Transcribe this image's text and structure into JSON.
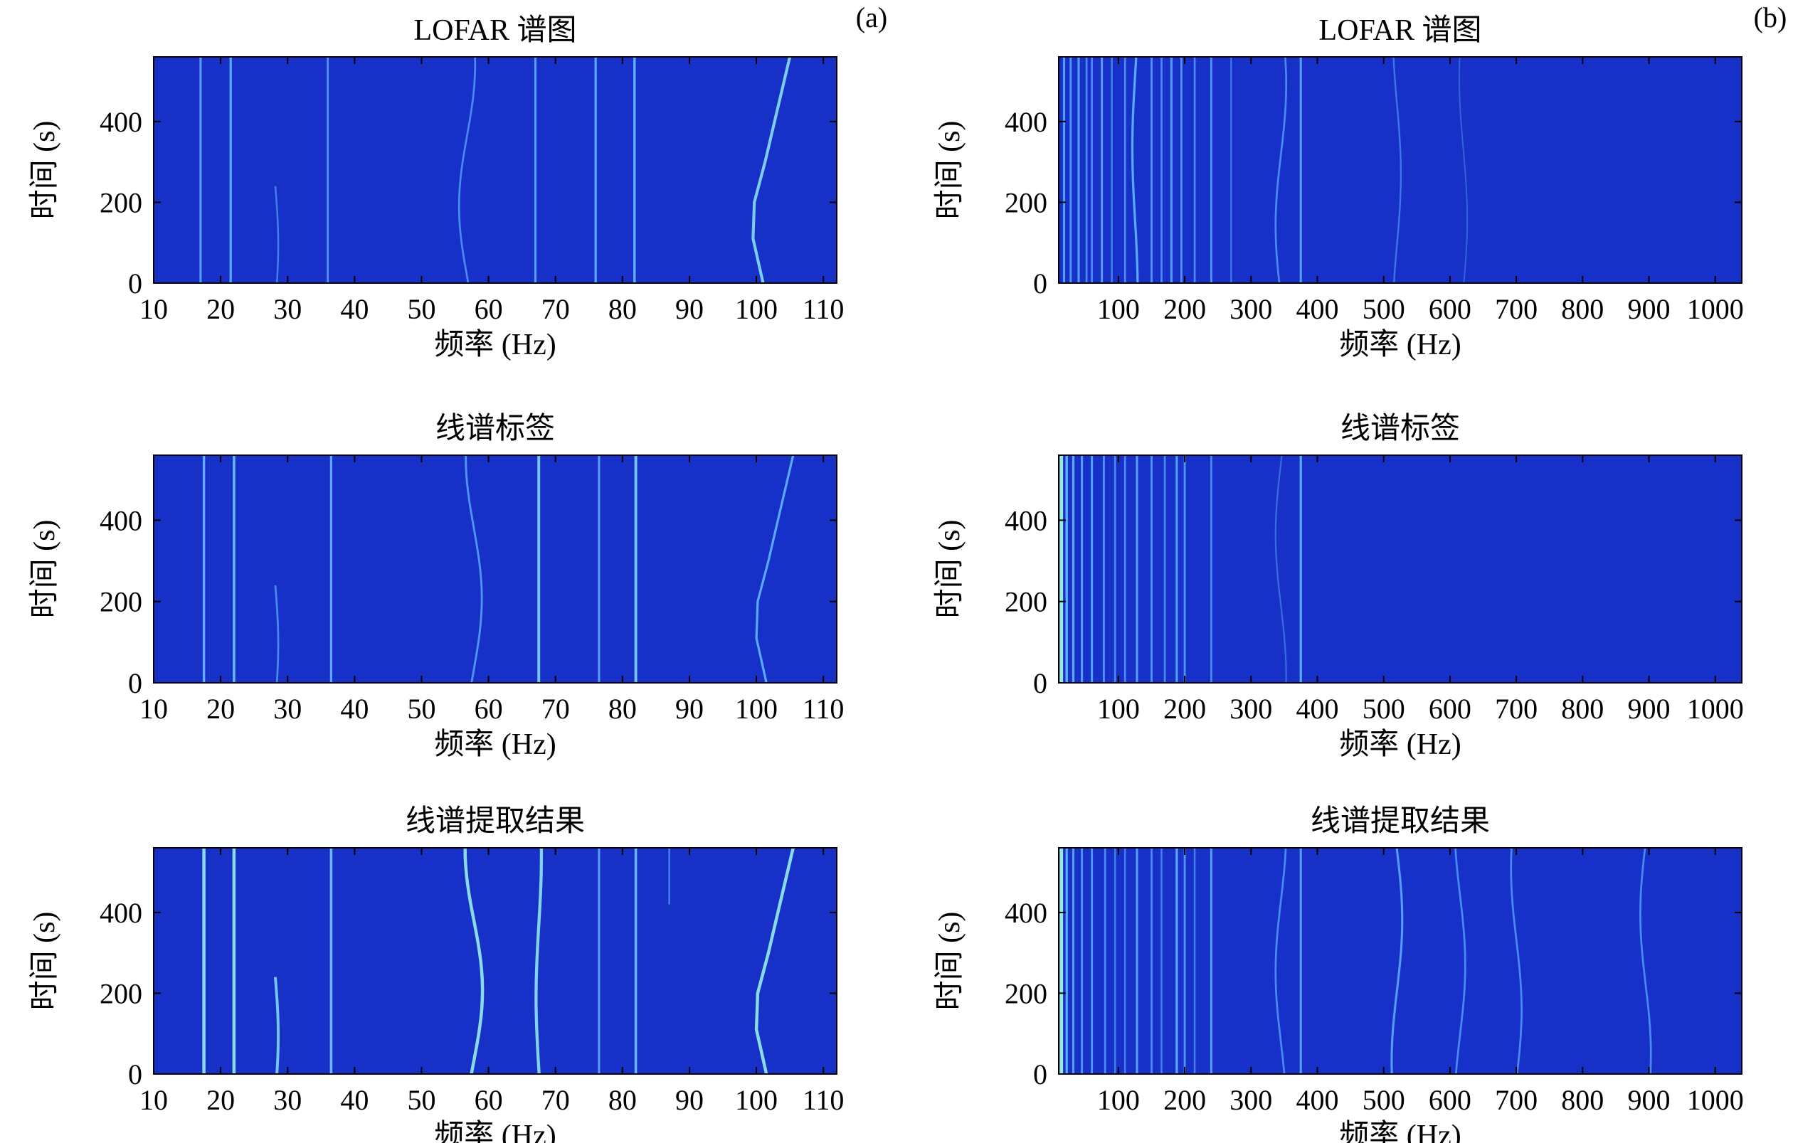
{
  "figure": {
    "panel_tags": [
      "(a)",
      "(b)"
    ],
    "background": "#1730c8",
    "line_colors": {
      "low": "#3a62f0",
      "mid": "#5aa8ff",
      "high": "#9ff0d8"
    }
  },
  "chart_data": [
    {
      "type": "heatmap",
      "panel": "a",
      "row": 0,
      "title": "LOFAR 谱图",
      "xlabel": "频率 (Hz)",
      "ylabel": "时间 (s)",
      "xlim": [
        10,
        112
      ],
      "ylim": [
        0,
        560
      ],
      "xticks": [
        10,
        20,
        30,
        40,
        50,
        60,
        70,
        80,
        90,
        100,
        110
      ],
      "yticks": [
        0,
        200,
        400
      ],
      "lines": [
        {
          "f": 17,
          "t": [
            0,
            560
          ],
          "level": 0.45
        },
        {
          "f": 21.5,
          "t": [
            0,
            560
          ],
          "level": 0.5
        },
        {
          "f": 36,
          "t": [
            0,
            560
          ],
          "level": 0.4
        },
        {
          "f": 56.8,
          "t": [
            0,
            560
          ],
          "level": 0.35,
          "wiggle": 1.2
        },
        {
          "f": 67,
          "t": [
            0,
            560
          ],
          "level": 0.45
        },
        {
          "f": 76,
          "t": [
            0,
            560
          ],
          "level": 0.5
        },
        {
          "f": 81.8,
          "t": [
            0,
            560
          ],
          "level": 0.55
        },
        {
          "f": 28,
          "t": [
            0,
            240
          ],
          "level": 0.3,
          "wiggle": 0.6
        },
        {
          "path": [
            [
              101,
              0
            ],
            [
              99.5,
              110
            ],
            [
              99.7,
              200
            ],
            [
              101.3,
              300
            ],
            [
              103,
              420
            ],
            [
              105,
              560
            ]
          ],
          "level": 0.75
        }
      ]
    },
    {
      "type": "heatmap",
      "panel": "a",
      "row": 1,
      "title": "线谱标签",
      "xlabel": "频率 (Hz)",
      "ylabel": "时间 (s)",
      "xlim": [
        10,
        112
      ],
      "ylim": [
        0,
        560
      ],
      "xticks": [
        10,
        20,
        30,
        40,
        50,
        60,
        70,
        80,
        90,
        100,
        110
      ],
      "yticks": [
        0,
        200,
        400
      ],
      "lines": [
        {
          "f": 17.5,
          "t": [
            0,
            560
          ],
          "level": 0.55
        },
        {
          "f": 22,
          "t": [
            0,
            560
          ],
          "level": 0.6
        },
        {
          "f": 36.5,
          "t": [
            0,
            560
          ],
          "level": 0.5
        },
        {
          "f": 67.5,
          "t": [
            0,
            560
          ],
          "level": 0.7
        },
        {
          "f": 76.5,
          "t": [
            0,
            560
          ],
          "level": 0.45
        },
        {
          "f": 82,
          "t": [
            0,
            560
          ],
          "level": 0.7
        },
        {
          "f": 57.8,
          "t": [
            0,
            560
          ],
          "level": 0.4,
          "wiggle": 1.2
        },
        {
          "f": 28,
          "t": [
            0,
            240
          ],
          "level": 0.35,
          "wiggle": 0.6
        },
        {
          "path": [
            [
              101.5,
              0
            ],
            [
              100,
              110
            ],
            [
              100.2,
              200
            ],
            [
              101.8,
              300
            ],
            [
              103.5,
              420
            ],
            [
              105.5,
              560
            ]
          ],
          "level": 0.5
        }
      ]
    },
    {
      "type": "heatmap",
      "panel": "a",
      "row": 2,
      "title": "线谱提取结果",
      "xlabel": "频率 (Hz)",
      "ylabel": "时间 (s)",
      "xlim": [
        10,
        112
      ],
      "ylim": [
        0,
        560
      ],
      "xticks": [
        10,
        20,
        30,
        40,
        50,
        60,
        70,
        80,
        90,
        100,
        110
      ],
      "yticks": [
        0,
        200,
        400
      ],
      "lines": [
        {
          "f": 17.5,
          "t": [
            0,
            560
          ],
          "level": 0.85
        },
        {
          "f": 22,
          "t": [
            0,
            560
          ],
          "level": 0.85
        },
        {
          "f": 36.5,
          "t": [
            0,
            560
          ],
          "level": 0.6
        },
        {
          "f": 67.5,
          "t": [
            0,
            560
          ],
          "level": 0.8,
          "wiggle": 0.4
        },
        {
          "f": 76.5,
          "t": [
            0,
            560
          ],
          "level": 0.45
        },
        {
          "f": 82,
          "t": [
            0,
            560
          ],
          "level": 0.6
        },
        {
          "f": 57.8,
          "t": [
            0,
            560
          ],
          "level": 0.85,
          "wiggle": 1.3
        },
        {
          "f": 28,
          "t": [
            0,
            240
          ],
          "level": 0.7,
          "wiggle": 0.6
        },
        {
          "f": 87,
          "t": [
            420,
            560
          ],
          "level": 0.3
        },
        {
          "path": [
            [
              101.5,
              0
            ],
            [
              100,
              110
            ],
            [
              100.2,
              200
            ],
            [
              101.8,
              300
            ],
            [
              103.5,
              420
            ],
            [
              105.5,
              560
            ]
          ],
          "level": 0.85
        }
      ]
    },
    {
      "type": "heatmap",
      "panel": "b",
      "row": 0,
      "title": "LOFAR 谱图",
      "xlabel": "频率 (Hz)",
      "ylabel": "时间 (s)",
      "xlim": [
        10,
        1040
      ],
      "ylim": [
        0,
        560
      ],
      "xticks": [
        100,
        200,
        300,
        400,
        500,
        600,
        700,
        800,
        900,
        1000
      ],
      "yticks": [
        0,
        200,
        400
      ],
      "lines": [
        {
          "f": 18,
          "t": [
            0,
            560
          ],
          "level": 0.45
        },
        {
          "f": 28,
          "t": [
            0,
            560
          ],
          "level": 0.4
        },
        {
          "f": 40,
          "t": [
            0,
            560
          ],
          "level": 0.45
        },
        {
          "f": 52,
          "t": [
            0,
            560
          ],
          "level": 0.35
        },
        {
          "f": 60,
          "t": [
            0,
            560
          ],
          "level": 0.35
        },
        {
          "f": 75,
          "t": [
            0,
            560
          ],
          "level": 0.45
        },
        {
          "f": 90,
          "t": [
            0,
            560
          ],
          "level": 0.3
        },
        {
          "f": 110,
          "t": [
            0,
            560
          ],
          "level": 0.35
        },
        {
          "f": 125,
          "t": [
            0,
            560
          ],
          "level": 0.5,
          "wiggle": 4
        },
        {
          "f": 150,
          "t": [
            0,
            560
          ],
          "level": 0.4
        },
        {
          "f": 165,
          "t": [
            0,
            560
          ],
          "level": 0.35
        },
        {
          "f": 180,
          "t": [
            0,
            560
          ],
          "level": 0.45
        },
        {
          "f": 195,
          "t": [
            0,
            560
          ],
          "level": 0.4
        },
        {
          "f": 215,
          "t": [
            0,
            560
          ],
          "level": 0.35
        },
        {
          "f": 240,
          "t": [
            0,
            560
          ],
          "level": 0.4
        },
        {
          "f": 270,
          "t": [
            0,
            560
          ],
          "level": 0.25
        },
        {
          "f": 345,
          "t": [
            0,
            560
          ],
          "level": 0.35,
          "wiggle": 8
        },
        {
          "f": 375,
          "t": [
            0,
            560
          ],
          "level": 0.45
        },
        {
          "f": 520,
          "t": [
            0,
            560
          ],
          "level": 0.25,
          "wiggle": 6
        },
        {
          "f": 620,
          "t": [
            0,
            560
          ],
          "level": 0.15,
          "wiggle": 6
        }
      ]
    },
    {
      "type": "heatmap",
      "panel": "b",
      "row": 1,
      "title": "线谱标签",
      "xlabel": "频率 (Hz)",
      "ylabel": "时间 (s)",
      "xlim": [
        10,
        1040
      ],
      "ylim": [
        0,
        560
      ],
      "xticks": [
        100,
        200,
        300,
        400,
        500,
        600,
        700,
        800,
        900,
        1000
      ],
      "yticks": [
        0,
        200,
        400
      ],
      "lines": [
        {
          "f": 14,
          "t": [
            0,
            560
          ],
          "level": 0.95
        },
        {
          "f": 22,
          "t": [
            0,
            560
          ],
          "level": 0.55
        },
        {
          "f": 32,
          "t": [
            0,
            560
          ],
          "level": 0.5
        },
        {
          "f": 45,
          "t": [
            0,
            560
          ],
          "level": 0.45
        },
        {
          "f": 60,
          "t": [
            0,
            560
          ],
          "level": 0.45
        },
        {
          "f": 78,
          "t": [
            0,
            560
          ],
          "level": 0.4
        },
        {
          "f": 95,
          "t": [
            0,
            560
          ],
          "level": 0.35
        },
        {
          "f": 110,
          "t": [
            0,
            560
          ],
          "level": 0.35
        },
        {
          "f": 128,
          "t": [
            0,
            560
          ],
          "level": 0.45
        },
        {
          "f": 150,
          "t": [
            0,
            560
          ],
          "level": 0.4
        },
        {
          "f": 170,
          "t": [
            0,
            560
          ],
          "level": 0.35
        },
        {
          "f": 188,
          "t": [
            0,
            560
          ],
          "level": 0.45
        },
        {
          "f": 200,
          "t": [
            0,
            560
          ],
          "level": 0.4
        },
        {
          "f": 240,
          "t": [
            0,
            560
          ],
          "level": 0.35
        },
        {
          "f": 345,
          "t": [
            0,
            560
          ],
          "level": 0.2,
          "wiggle": 8
        },
        {
          "f": 375,
          "t": [
            0,
            560
          ],
          "level": 0.5
        }
      ]
    },
    {
      "type": "heatmap",
      "panel": "b",
      "row": 2,
      "title": "线谱提取结果",
      "xlabel": "频率 (Hz)",
      "ylabel": "时间 (s)",
      "xlim": [
        10,
        1040
      ],
      "ylim": [
        0,
        560
      ],
      "xticks": [
        100,
        200,
        300,
        400,
        500,
        600,
        700,
        800,
        900,
        1000
      ],
      "yticks": [
        0,
        200,
        400
      ],
      "lines": [
        {
          "f": 14,
          "t": [
            0,
            560
          ],
          "level": 0.95
        },
        {
          "f": 22,
          "t": [
            0,
            560
          ],
          "level": 0.5
        },
        {
          "f": 32,
          "t": [
            0,
            560
          ],
          "level": 0.45
        },
        {
          "f": 45,
          "t": [
            0,
            560
          ],
          "level": 0.4
        },
        {
          "f": 60,
          "t": [
            0,
            560
          ],
          "level": 0.4
        },
        {
          "f": 80,
          "t": [
            0,
            560
          ],
          "level": 0.35
        },
        {
          "f": 95,
          "t": [
            0,
            560
          ],
          "level": 0.3
        },
        {
          "f": 110,
          "t": [
            0,
            560
          ],
          "level": 0.3
        },
        {
          "f": 128,
          "t": [
            0,
            560
          ],
          "level": 0.45
        },
        {
          "f": 150,
          "t": [
            0,
            560
          ],
          "level": 0.35
        },
        {
          "f": 165,
          "t": [
            0,
            560
          ],
          "level": 0.3
        },
        {
          "f": 188,
          "t": [
            0,
            560
          ],
          "level": 0.5
        },
        {
          "f": 200,
          "t": [
            0,
            560
          ],
          "level": 0.4
        },
        {
          "f": 215,
          "t": [
            0,
            560
          ],
          "level": 0.3
        },
        {
          "f": 240,
          "t": [
            0,
            560
          ],
          "level": 0.45
        },
        {
          "f": 345,
          "t": [
            0,
            560
          ],
          "level": 0.35,
          "wiggle": 8
        },
        {
          "f": 375,
          "t": [
            0,
            560
          ],
          "level": 0.45
        },
        {
          "f": 520,
          "t": [
            0,
            560
          ],
          "level": 0.45,
          "wiggle": 8
        },
        {
          "f": 615,
          "t": [
            0,
            560
          ],
          "level": 0.35,
          "wiggle": 8
        },
        {
          "f": 700,
          "t": [
            0,
            560
          ],
          "level": 0.35,
          "wiggle": 8
        },
        {
          "f": 895,
          "t": [
            0,
            560
          ],
          "level": 0.35,
          "wiggle": 8
        }
      ]
    }
  ]
}
